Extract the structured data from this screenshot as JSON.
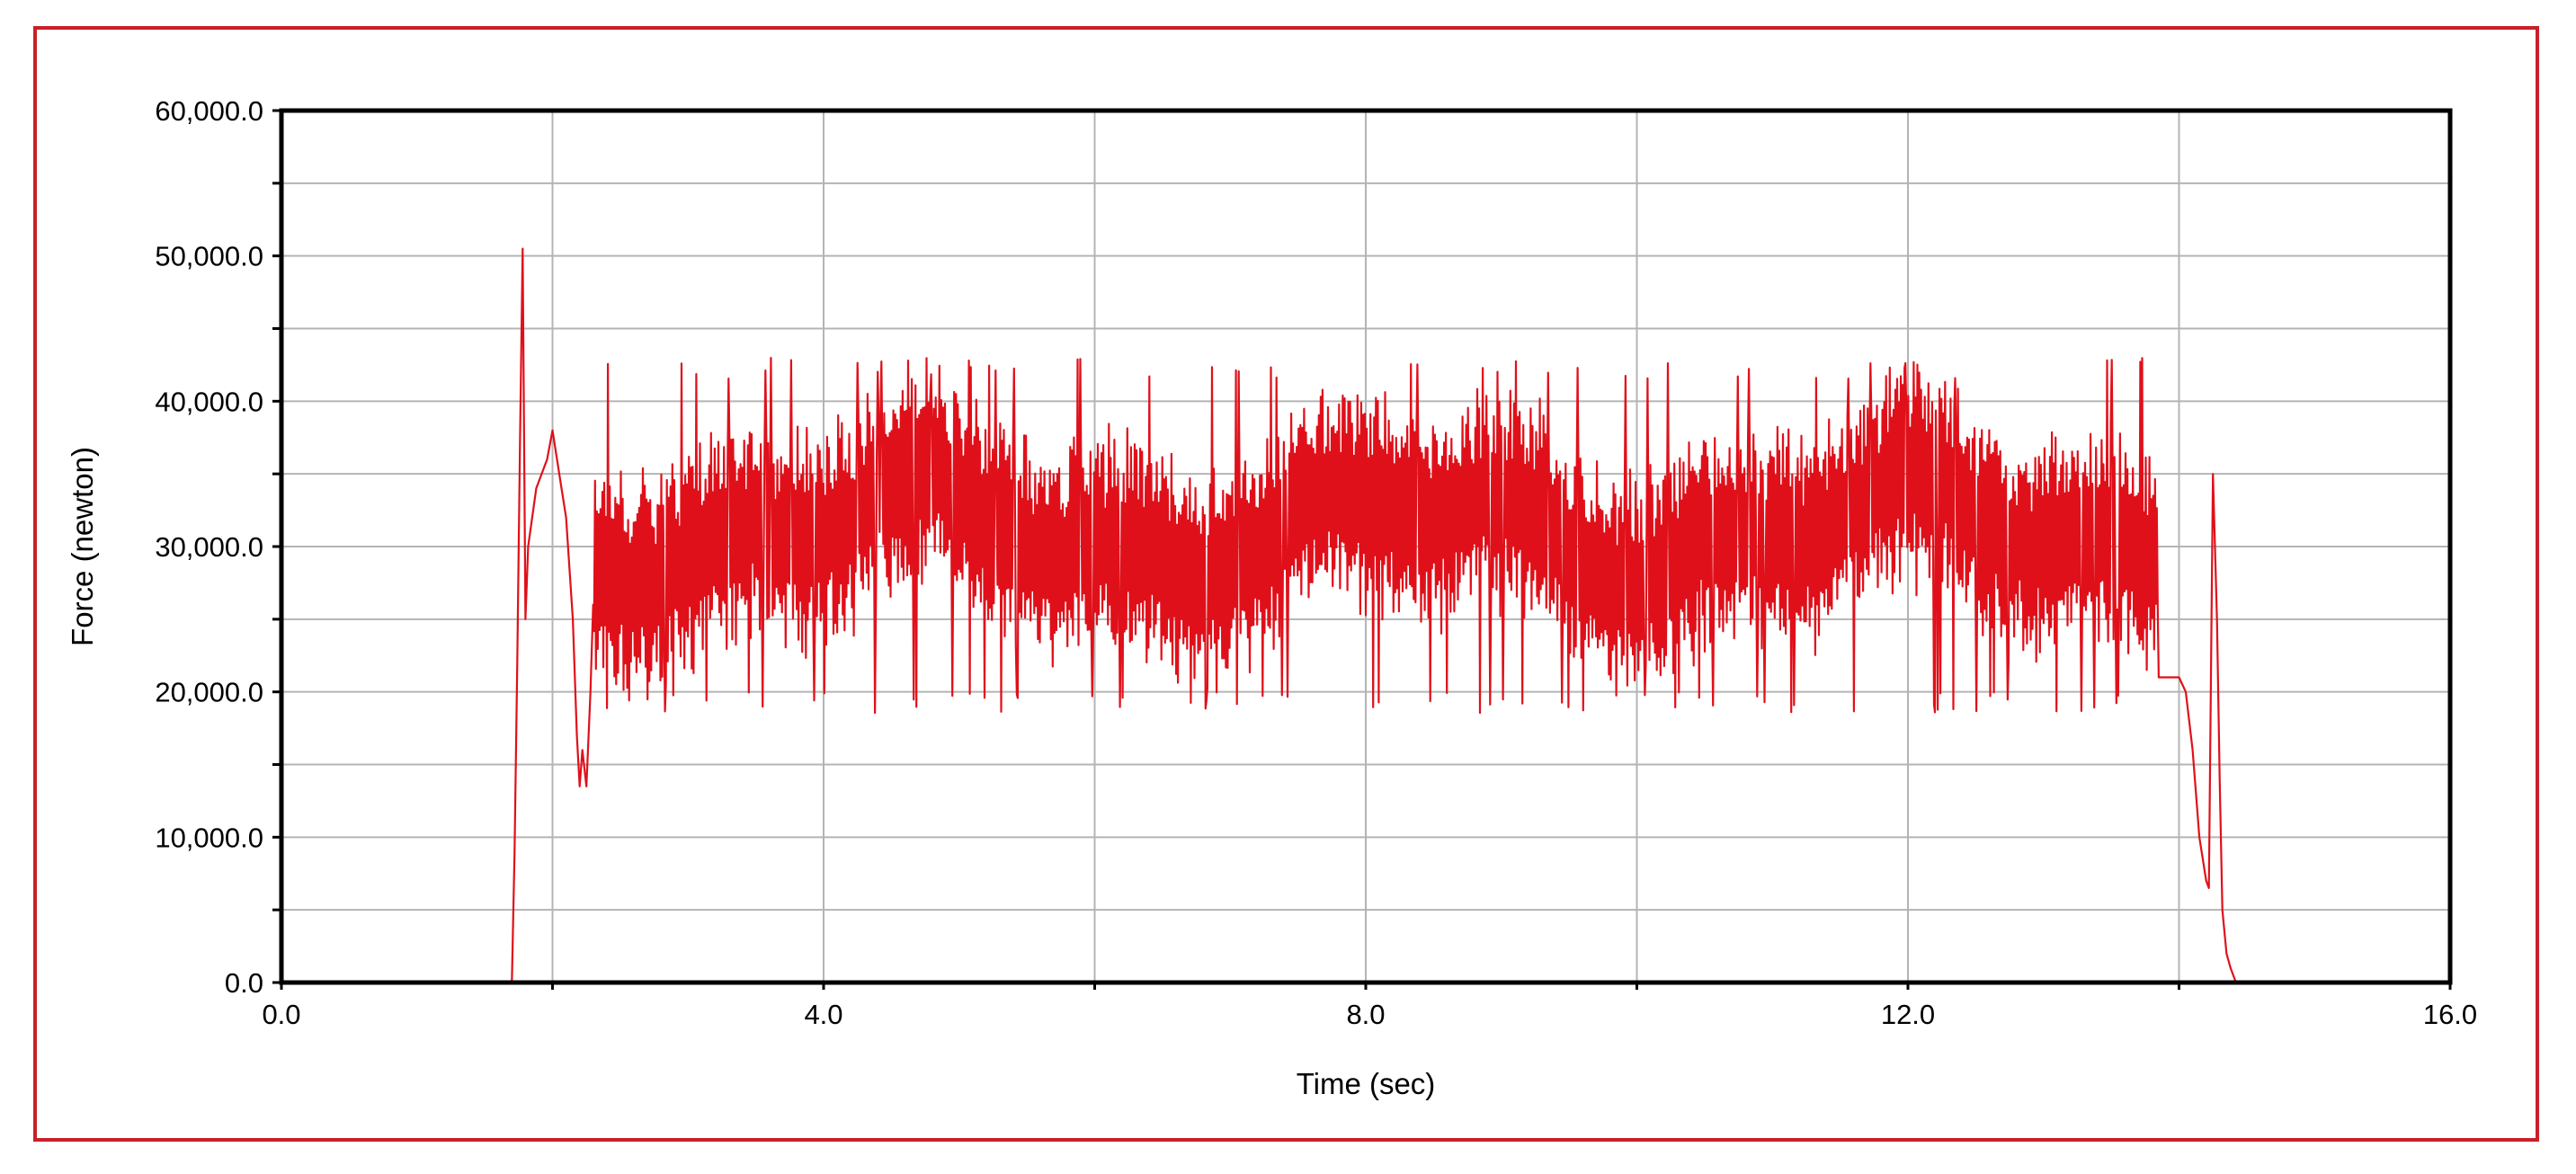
{
  "chart_data": {
    "type": "line",
    "xlabel": "Time (sec)",
    "ylabel": "Force (newton)",
    "xlim": [
      0,
      16
    ],
    "ylim": [
      0,
      60000
    ],
    "x_ticks": [
      0,
      4,
      8,
      12,
      16
    ],
    "x_tick_labels": [
      "0.0",
      "4.0",
      "8.0",
      "12.0",
      "16.0"
    ],
    "y_ticks": [
      0,
      10000,
      20000,
      30000,
      40000,
      50000,
      60000
    ],
    "y_tick_labels": [
      "0.0",
      "10,000.0",
      "20,000.0",
      "30,000.0",
      "40,000.0",
      "50,000.0",
      "60,000.0"
    ],
    "x_grid_step": 2,
    "y_grid_step": 5000,
    "grid": true,
    "legend": "none",
    "series": [
      {
        "color": "#e0101a",
        "noisy_band": {
          "x_start": 2.3,
          "x_end": 13.85,
          "mean": 31000,
          "min": 18500,
          "max": 43000
        },
        "x": [
          0.0,
          1.7,
          1.72,
          1.74,
          1.76,
          1.78,
          1.8,
          1.82,
          1.85,
          1.88,
          1.92,
          1.96,
          2.0,
          2.05,
          2.1,
          2.15,
          2.18,
          2.2,
          2.22,
          2.25,
          2.28,
          2.3,
          13.85,
          13.9,
          14.0,
          14.05,
          14.1,
          14.15,
          14.2,
          14.22,
          14.25,
          14.28,
          14.3,
          14.32,
          14.35,
          14.38,
          14.42,
          14.45,
          16.0
        ],
        "y": [
          0,
          0,
          9000,
          22000,
          37000,
          50500,
          25000,
          30000,
          32000,
          34000,
          35000,
          36000,
          38000,
          35000,
          32000,
          25000,
          17000,
          13500,
          16000,
          13500,
          20000,
          26000,
          21000,
          21000,
          21000,
          20000,
          16000,
          10000,
          7000,
          6500,
          35000,
          25000,
          14000,
          5000,
          2000,
          1000,
          0,
          0,
          0
        ]
      }
    ]
  }
}
